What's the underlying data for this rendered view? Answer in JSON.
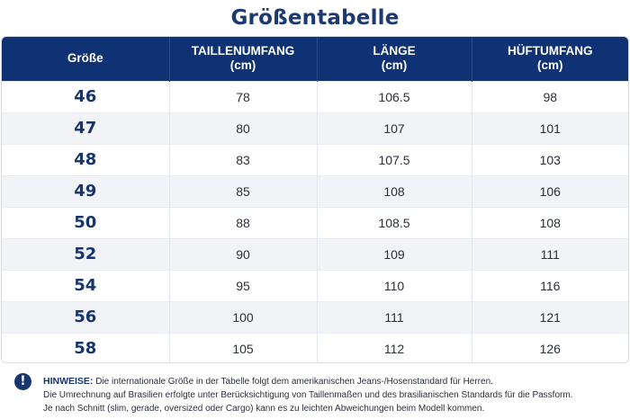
{
  "title": "Größentabelle",
  "table": {
    "headers": [
      {
        "line1": "Größe",
        "line2": ""
      },
      {
        "line1": "TAILLENUMFANG",
        "line2": "(cm)"
      },
      {
        "line1": "LÄNGE",
        "line2": "(cm)"
      },
      {
        "line1": "HÜFTUMFANG",
        "line2": "(cm)"
      }
    ],
    "rows": [
      {
        "size": "46",
        "waist": "78",
        "length": "106.5",
        "hip": "98"
      },
      {
        "size": "47",
        "waist": "80",
        "length": "107",
        "hip": "101"
      },
      {
        "size": "48",
        "waist": "83",
        "length": "107.5",
        "hip": "103"
      },
      {
        "size": "49",
        "waist": "85",
        "length": "108",
        "hip": "106"
      },
      {
        "size": "50",
        "waist": "88",
        "length": "108.5",
        "hip": "108"
      },
      {
        "size": "52",
        "waist": "90",
        "length": "109",
        "hip": "111"
      },
      {
        "size": "54",
        "waist": "95",
        "length": "110",
        "hip": "116"
      },
      {
        "size": "56",
        "waist": "100",
        "length": "111",
        "hip": "121"
      },
      {
        "size": "58",
        "waist": "105",
        "length": "112",
        "hip": "126"
      }
    ]
  },
  "notes": {
    "icon": "info-icon",
    "icon_glyph": "!",
    "label": "HINWEISE:",
    "line1": "Die internationale Größe in der Tabelle folgt dem amerikanischen Jeans-/Hosenstandard für Herren.",
    "line2": "Die Umrechnung auf Brasilien erfolgte unter Berücksichtigung von Taillenmaßen und des brasilianischen Standards für die Passform.",
    "line3": "Je nach Schnitt (slim, gerade, oversized oder Cargo) kann es zu leichten Abweichungen beim Modell kommen."
  },
  "colors": {
    "header_bg": "#0f3275",
    "title": "#1c3a70",
    "size_text": "#16356e",
    "stripe": "#f1f3f7"
  }
}
